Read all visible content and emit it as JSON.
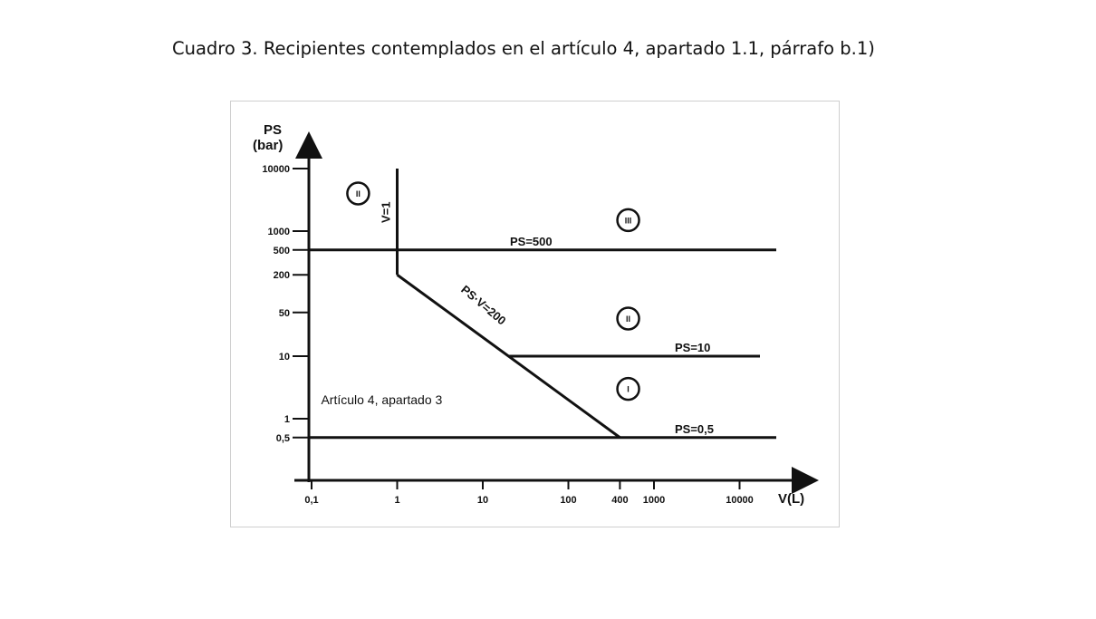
{
  "caption": "Cuadro 3. Recipientes contemplados en el artículo 4, apartado 1.1, párrafo b.1)",
  "chart_data": {
    "type": "line",
    "title": "",
    "ylabel_line1": "PS",
    "ylabel_line2": "(bar)",
    "xlabel": "V(L)",
    "x_scale": "log",
    "y_scale": "log",
    "xlim": [
      0.1,
      10000
    ],
    "ylim": [
      0.5,
      10000
    ],
    "x_ticks": [
      {
        "value": 0.1,
        "label": "0,1"
      },
      {
        "value": 1,
        "label": "1"
      },
      {
        "value": 10,
        "label": "10"
      },
      {
        "value": 100,
        "label": "100"
      },
      {
        "value": 400,
        "label": "400"
      },
      {
        "value": 1000,
        "label": "1000"
      },
      {
        "value": 10000,
        "label": "10000"
      }
    ],
    "y_ticks": [
      {
        "value": 0.5,
        "label": "0,5"
      },
      {
        "value": 1,
        "label": "1"
      },
      {
        "value": 10,
        "label": "10"
      },
      {
        "value": 50,
        "label": "50"
      },
      {
        "value": 200,
        "label": "200"
      },
      {
        "value": 500,
        "label": "500"
      },
      {
        "value": 1000,
        "label": "1000"
      },
      {
        "value": 10000,
        "label": "10000"
      }
    ],
    "grid": false,
    "lines": [
      {
        "label": "V=1",
        "points": [
          [
            1,
            200
          ],
          [
            1,
            10000
          ]
        ]
      },
      {
        "label": "PS=500",
        "points": [
          [
            0.1,
            500
          ],
          [
            10000,
            500
          ]
        ]
      },
      {
        "label": "PS·V=200",
        "points": [
          [
            1,
            200
          ],
          [
            400,
            0.5
          ]
        ]
      },
      {
        "label": "PS=10",
        "points": [
          [
            20,
            10
          ],
          [
            10000,
            10
          ]
        ]
      },
      {
        "label": "PS=0,5",
        "points": [
          [
            0.1,
            0.5
          ],
          [
            10000,
            0.5
          ]
        ]
      }
    ],
    "categories": [
      {
        "label": "II",
        "x": 0.35,
        "y": 4000
      },
      {
        "label": "III",
        "x": 500,
        "y": 1500
      },
      {
        "label": "II",
        "x": 500,
        "y": 40
      },
      {
        "label": "I",
        "x": 500,
        "y": 3
      }
    ],
    "annotation": {
      "text": "Artículo 4, apartado 3",
      "x": 0.2,
      "y": 2
    }
  }
}
